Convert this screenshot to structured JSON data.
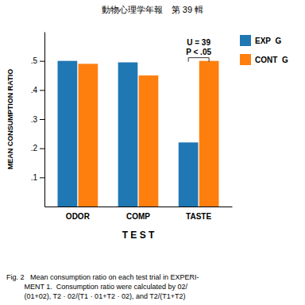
{
  "chart_data": {
    "type": "bar",
    "title": "動物心理学年報　第 39 輯",
    "categories": [
      "ODOR",
      "COMP",
      "TASTE"
    ],
    "series": [
      {
        "name": "EXP  G",
        "values": [
          0.5,
          0.495,
          0.22
        ]
      },
      {
        "name": "CONT  G",
        "values": [
          0.49,
          0.45,
          0.5
        ]
      }
    ],
    "x_label": "T E S T",
    "y_label": "MEAN CONSUMPTION RATIO",
    "ylim": [
      0,
      0.6
    ],
    "yticks": [
      {
        "value": 0.1,
        "label": ".1"
      },
      {
        "value": 0.2,
        "label": ".2"
      },
      {
        "value": 0.3,
        "label": ".3"
      },
      {
        "value": 0.4,
        "label": ".4"
      },
      {
        "value": 0.5,
        "label": ".5"
      }
    ],
    "annotations": [
      {
        "text": "U = 39",
        "category": "TASTE"
      },
      {
        "text": "P < .05",
        "category": "TASTE"
      }
    ],
    "caption": [
      "Fig. 2   Mean consumption ratio on each test trial in EXPERI-",
      "         MENT 1.  Consumption ratio were calculated by 02/",
      "         (01+02), T2 · 02/(T1 · 01+T2 · 02), and T2/(T1+T2)"
    ],
    "legend": "right",
    "grid": false
  }
}
